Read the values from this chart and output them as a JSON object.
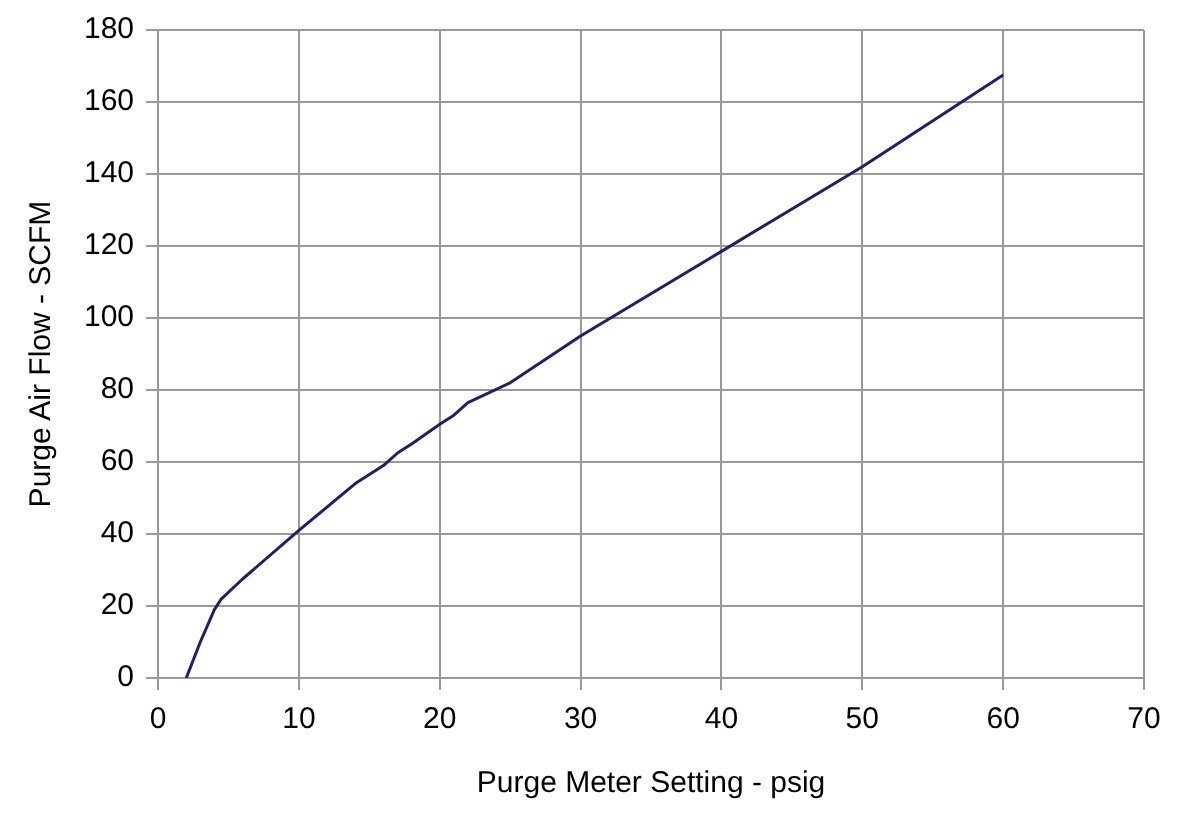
{
  "chart_data": {
    "type": "line",
    "xlabel": "Purge Meter Setting - psig",
    "ylabel": "Purge Air Flow - SCFM",
    "x": [
      2,
      3,
      4,
      4.5,
      6,
      10,
      14,
      16,
      17,
      18,
      20,
      21,
      22,
      25,
      30,
      40,
      50,
      60
    ],
    "series": [
      {
        "color": "#1f1f6e",
        "values": [
          0,
          10,
          19,
          22,
          27.5,
          41,
          54,
          59,
          62.5,
          65,
          70.5,
          73,
          76.5,
          82,
          95,
          118.5,
          142,
          167.5
        ]
      }
    ],
    "xlim": [
      0,
      70
    ],
    "xticks": [
      0,
      10,
      20,
      30,
      40,
      50,
      60,
      70
    ],
    "ylim": [
      0,
      180
    ],
    "yticks": [
      0,
      20,
      40,
      60,
      80,
      100,
      120,
      140,
      160,
      180
    ],
    "grid": true,
    "legend": false,
    "marker": "none",
    "line_style": "solid"
  }
}
